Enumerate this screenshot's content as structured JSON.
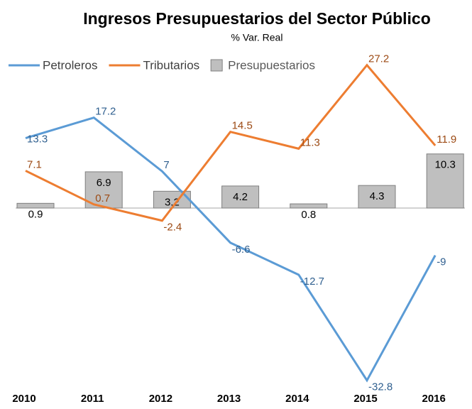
{
  "chart_data": {
    "type": "bar-line",
    "title": "Ingresos Presupuestarios del Sector Público",
    "subtitle": "% Var. Real",
    "categories": [
      "2010",
      "2011",
      "2012",
      "2013",
      "2014",
      "2015",
      "2016"
    ],
    "ylim": [
      -35,
      30
    ],
    "legend": "top",
    "series": [
      {
        "name": "Petroleros",
        "type": "line",
        "color": "#5b9bd5",
        "label_color": "#2f5f8f",
        "values": [
          13.3,
          17.2,
          7,
          -6.6,
          -12.7,
          -32.8,
          -9
        ]
      },
      {
        "name": "Tributarios",
        "type": "line",
        "color": "#ed7d31",
        "label_color": "#9c4a14",
        "values": [
          7.1,
          0.7,
          -2.4,
          14.5,
          11.3,
          27.2,
          11.9
        ]
      },
      {
        "name": "Presupuestarios",
        "type": "bar",
        "color": "#bfbfbf",
        "values": [
          0.9,
          6.9,
          3.2,
          4.2,
          0.8,
          4.3,
          10.3
        ]
      }
    ]
  }
}
